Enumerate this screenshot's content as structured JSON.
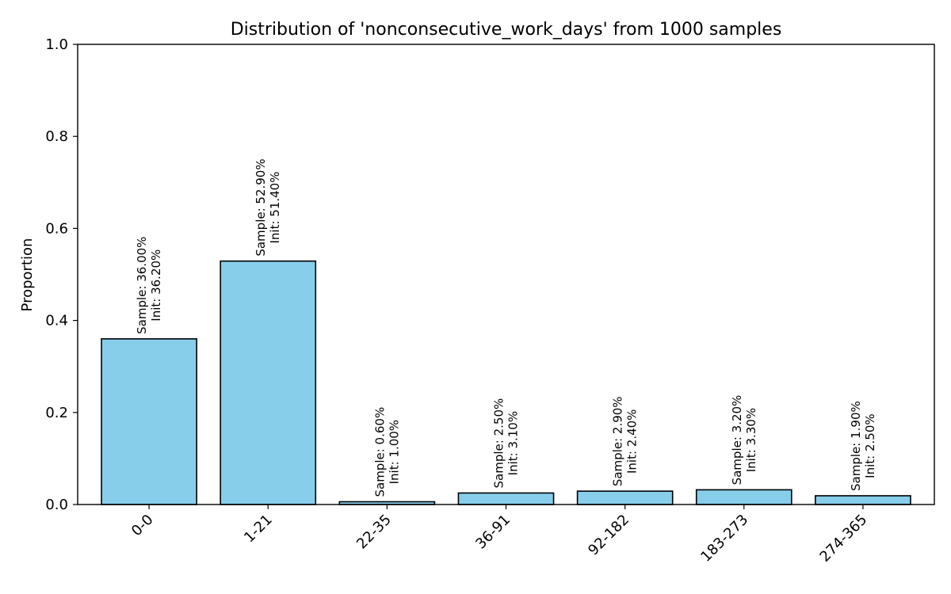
{
  "chart_data": {
    "type": "bar",
    "title": "Distribution of 'nonconsecutive_work_days' from 1000 samples",
    "xlabel": "",
    "ylabel": "Proportion",
    "ylim": [
      0,
      1.0
    ],
    "yticks": [
      "0.0",
      "0.2",
      "0.4",
      "0.6",
      "0.8",
      "1.0"
    ],
    "ytick_values": [
      0,
      0.2,
      0.4,
      0.6,
      0.8,
      1.0
    ],
    "categories": [
      "0-0",
      "1-21",
      "22-35",
      "36-91",
      "92-182",
      "183-273",
      "274-365"
    ],
    "values": [
      0.36,
      0.529,
      0.006,
      0.025,
      0.029,
      0.032,
      0.019
    ],
    "sample_labels": [
      "Sample: 36.00%",
      "Sample: 52.90%",
      "Sample: 0.60%",
      "Sample: 2.50%",
      "Sample: 2.90%",
      "Sample: 3.20%",
      "Sample: 1.90%"
    ],
    "init_labels": [
      "Init: 36.20%",
      "Init: 51.40%",
      "Init: 1.00%",
      "Init: 3.10%",
      "Init: 2.40%",
      "Init: 3.30%",
      "Init: 2.50%"
    ],
    "bar_color": "#87CEEB",
    "edge_color": "#000000",
    "grid": false,
    "legend": "none"
  }
}
